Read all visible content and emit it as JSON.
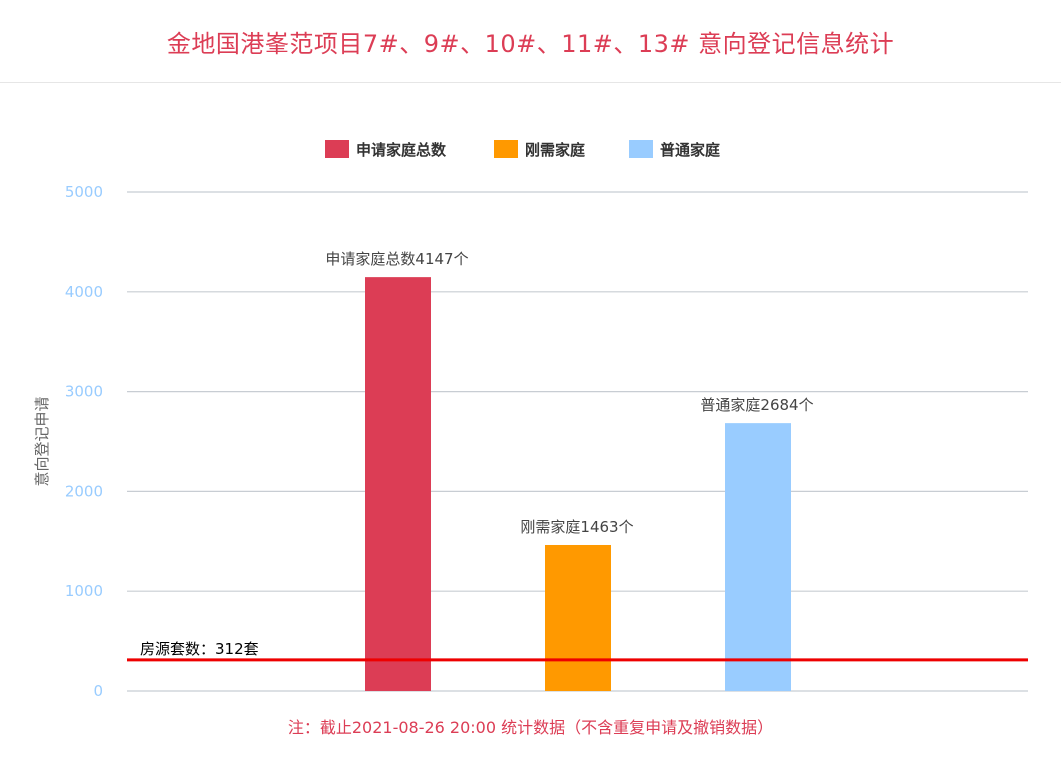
{
  "header": {
    "title": "金地国港峯范项目7#、9#、10#、11#、13# 意向登记信息统计"
  },
  "footer": {
    "note": "注：截止2021-08-26 20:00 统计数据（不含重复申请及撤销数据）"
  },
  "chart_data": {
    "type": "bar",
    "title": "金地国港峯范项目7#、9#、10#、11#、13# 意向登记信息统计",
    "ylabel": "意向登记申请",
    "xlabel": "",
    "ylim": [
      0,
      5000
    ],
    "yticks": [
      "0",
      "1000",
      "2000",
      "3000",
      "4000",
      "5000"
    ],
    "grid": true,
    "legend_position": "top-center",
    "series": [
      {
        "name": "申请家庭总数",
        "value": 4147,
        "color": "#dc3d55",
        "label": "申请家庭总数4147个"
      },
      {
        "name": "刚需家庭",
        "value": 1463,
        "color": "#ff9900",
        "label": "刚需家庭1463个"
      },
      {
        "name": "普通家庭",
        "value": 2684,
        "color": "#99ccff",
        "label": "普通家庭2684个"
      }
    ],
    "reference_line": {
      "value": 312,
      "color": "#ee0000",
      "label": "房源套数：312套"
    }
  }
}
